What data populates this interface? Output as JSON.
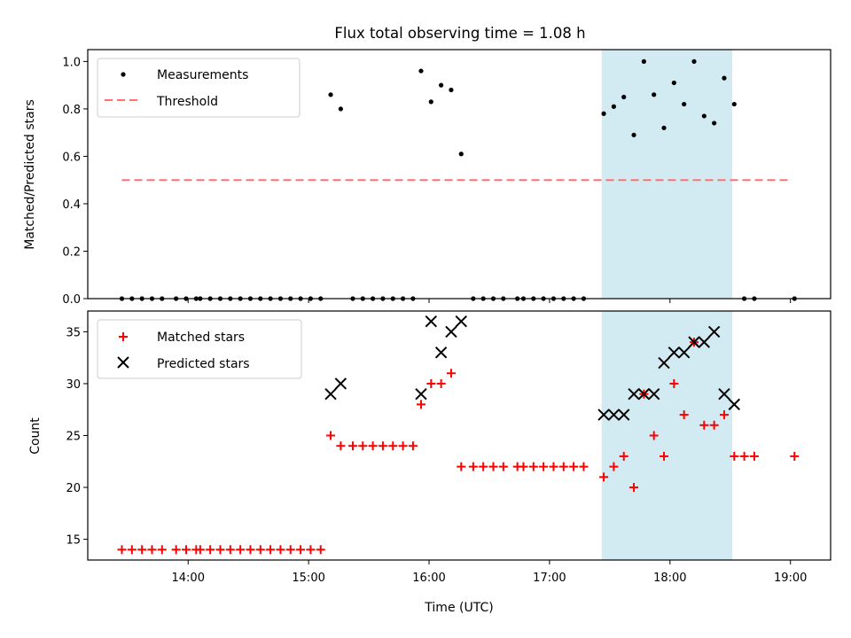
{
  "figure_title": "Flux total observing time = 1.08 h",
  "colors": {
    "measurement": "#000000",
    "threshold": "#ff7070",
    "matched": "#ff0000",
    "predicted": "#000000",
    "highlight": "#add8e6"
  },
  "chart_data": [
    {
      "type": "scatter",
      "title": "Flux total observing time = 1.08 h",
      "ylabel": "Matched/Predicted stars",
      "xlabel": "",
      "x_unit": "hours UTC",
      "xlim": [
        "13:10",
        "19:20"
      ],
      "ylim": [
        0,
        1.05
      ],
      "yticks": [
        0.0,
        0.2,
        0.4,
        0.6,
        0.8,
        1.0
      ],
      "ytick_labels": [
        "0.0",
        "0.2",
        "0.4",
        "0.6",
        "0.8",
        "1.0"
      ],
      "highlight_span": [
        "17:26",
        "18:31"
      ],
      "legend_position": "upper left",
      "legend": [
        "Measurements",
        "Threshold"
      ],
      "series": [
        {
          "name": "Measurements",
          "marker": "dot",
          "points": [
            [
              "13:27",
              0
            ],
            [
              "13:32",
              0
            ],
            [
              "13:37",
              0
            ],
            [
              "13:42",
              0
            ],
            [
              "13:47",
              0
            ],
            [
              "13:54",
              0
            ],
            [
              "13:59",
              0
            ],
            [
              "14:04",
              0
            ],
            [
              "14:06",
              0
            ],
            [
              "14:11",
              0
            ],
            [
              "14:16",
              0
            ],
            [
              "14:21",
              0
            ],
            [
              "14:26",
              0
            ],
            [
              "14:31",
              0
            ],
            [
              "14:36",
              0
            ],
            [
              "14:41",
              0
            ],
            [
              "14:46",
              0
            ],
            [
              "14:51",
              0
            ],
            [
              "14:56",
              0
            ],
            [
              "15:01",
              0
            ],
            [
              "15:06",
              0
            ],
            [
              "15:11",
              0.86
            ],
            [
              "15:16",
              0.8
            ],
            [
              "15:22",
              0
            ],
            [
              "15:27",
              0
            ],
            [
              "15:32",
              0
            ],
            [
              "15:37",
              0
            ],
            [
              "15:42",
              0
            ],
            [
              "15:47",
              0
            ],
            [
              "15:52",
              0
            ],
            [
              "15:56",
              0.96
            ],
            [
              "16:01",
              0.83
            ],
            [
              "16:06",
              0.9
            ],
            [
              "16:11",
              0.88
            ],
            [
              "16:16",
              0.61
            ],
            [
              "16:22",
              0
            ],
            [
              "16:27",
              0
            ],
            [
              "16:32",
              0
            ],
            [
              "16:37",
              0
            ],
            [
              "16:44",
              0
            ],
            [
              "16:47",
              0
            ],
            [
              "16:52",
              0
            ],
            [
              "16:57",
              0
            ],
            [
              "17:02",
              0
            ],
            [
              "17:07",
              0
            ],
            [
              "17:12",
              0
            ],
            [
              "17:17",
              0
            ],
            [
              "17:27",
              0.78
            ],
            [
              "17:32",
              0.81
            ],
            [
              "17:37",
              0.85
            ],
            [
              "17:42",
              0.69
            ],
            [
              "17:47",
              1.0
            ],
            [
              "17:52",
              0.86
            ],
            [
              "17:57",
              0.72
            ],
            [
              "18:02",
              0.91
            ],
            [
              "18:07",
              0.82
            ],
            [
              "18:12",
              1.0
            ],
            [
              "18:17",
              0.77
            ],
            [
              "18:22",
              0.74
            ],
            [
              "18:27",
              0.93
            ],
            [
              "18:32",
              0.82
            ],
            [
              "18:37",
              0
            ],
            [
              "18:42",
              0
            ],
            [
              "19:02",
              0
            ]
          ]
        },
        {
          "name": "Threshold",
          "marker": "dashed-line",
          "points": [
            [
              "13:27",
              0.5
            ],
            [
              "19:00",
              0.5
            ]
          ]
        }
      ]
    },
    {
      "type": "scatter",
      "title": "",
      "ylabel": "Count",
      "xlabel": "Time (UTC)",
      "x_unit": "hours UTC",
      "xlim": [
        "13:10",
        "19:20"
      ],
      "ylim": [
        13,
        37
      ],
      "yticks": [
        15,
        20,
        25,
        30,
        35
      ],
      "ytick_labels": [
        "15",
        "20",
        "25",
        "30",
        "35"
      ],
      "xticks": [
        "14:00",
        "15:00",
        "16:00",
        "17:00",
        "18:00",
        "19:00"
      ],
      "xtick_labels": [
        "14:00",
        "15:00",
        "16:00",
        "17:00",
        "18:00",
        "19:00"
      ],
      "highlight_span": [
        "17:26",
        "18:31"
      ],
      "legend_position": "upper left",
      "legend": [
        "Matched stars",
        "Predicted stars"
      ],
      "series": [
        {
          "name": "Matched stars",
          "marker": "plus",
          "points": [
            [
              "13:27",
              14
            ],
            [
              "13:32",
              14
            ],
            [
              "13:37",
              14
            ],
            [
              "13:42",
              14
            ],
            [
              "13:47",
              14
            ],
            [
              "13:54",
              14
            ],
            [
              "13:59",
              14
            ],
            [
              "14:04",
              14
            ],
            [
              "14:06",
              14
            ],
            [
              "14:11",
              14
            ],
            [
              "14:16",
              14
            ],
            [
              "14:21",
              14
            ],
            [
              "14:26",
              14
            ],
            [
              "14:31",
              14
            ],
            [
              "14:36",
              14
            ],
            [
              "14:41",
              14
            ],
            [
              "14:46",
              14
            ],
            [
              "14:51",
              14
            ],
            [
              "14:56",
              14
            ],
            [
              "15:01",
              14
            ],
            [
              "15:06",
              14
            ],
            [
              "15:11",
              25
            ],
            [
              "15:16",
              24
            ],
            [
              "15:22",
              24
            ],
            [
              "15:27",
              24
            ],
            [
              "15:32",
              24
            ],
            [
              "15:37",
              24
            ],
            [
              "15:42",
              24
            ],
            [
              "15:47",
              24
            ],
            [
              "15:52",
              24
            ],
            [
              "15:56",
              28
            ],
            [
              "16:01",
              30
            ],
            [
              "16:06",
              30
            ],
            [
              "16:11",
              31
            ],
            [
              "16:16",
              22
            ],
            [
              "16:22",
              22
            ],
            [
              "16:27",
              22
            ],
            [
              "16:32",
              22
            ],
            [
              "16:37",
              22
            ],
            [
              "16:44",
              22
            ],
            [
              "16:47",
              22
            ],
            [
              "16:52",
              22
            ],
            [
              "16:57",
              22
            ],
            [
              "17:02",
              22
            ],
            [
              "17:07",
              22
            ],
            [
              "17:12",
              22
            ],
            [
              "17:17",
              22
            ],
            [
              "17:27",
              21
            ],
            [
              "17:32",
              22
            ],
            [
              "17:37",
              23
            ],
            [
              "17:42",
              20
            ],
            [
              "17:47",
              29
            ],
            [
              "17:52",
              25
            ],
            [
              "17:57",
              23
            ],
            [
              "18:02",
              30
            ],
            [
              "18:07",
              27
            ],
            [
              "18:12",
              34
            ],
            [
              "18:17",
              26
            ],
            [
              "18:22",
              26
            ],
            [
              "18:27",
              27
            ],
            [
              "18:32",
              23
            ],
            [
              "18:37",
              23
            ],
            [
              "18:42",
              23
            ],
            [
              "19:02",
              23
            ]
          ]
        },
        {
          "name": "Predicted stars",
          "marker": "x",
          "points": [
            [
              "15:11",
              29
            ],
            [
              "15:16",
              30
            ],
            [
              "15:56",
              29
            ],
            [
              "16:01",
              36
            ],
            [
              "16:06",
              33
            ],
            [
              "16:11",
              35
            ],
            [
              "16:16",
              36
            ],
            [
              "17:27",
              27
            ],
            [
              "17:32",
              27
            ],
            [
              "17:37",
              27
            ],
            [
              "17:42",
              29
            ],
            [
              "17:47",
              29
            ],
            [
              "17:52",
              29
            ],
            [
              "17:57",
              32
            ],
            [
              "18:02",
              33
            ],
            [
              "18:07",
              33
            ],
            [
              "18:12",
              34
            ],
            [
              "18:17",
              34
            ],
            [
              "18:22",
              35
            ],
            [
              "18:27",
              29
            ],
            [
              "18:32",
              28
            ]
          ]
        }
      ]
    }
  ]
}
